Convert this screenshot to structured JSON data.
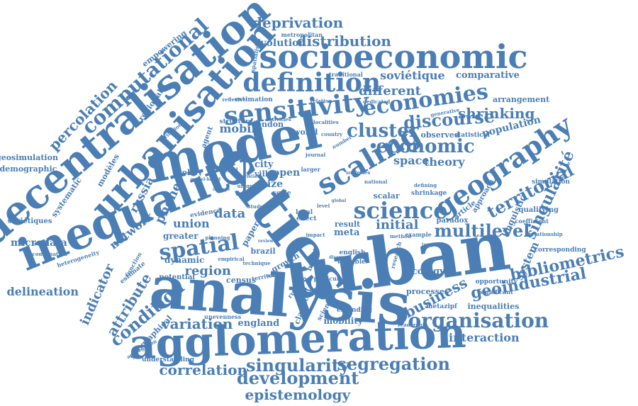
{
  "color": "#4a7eb4",
  "words": [
    "urban",
    "cities",
    "analysis",
    "model",
    "inequality",
    "agglomeration",
    "decentralisation",
    "urbanisation",
    "socioeconomic",
    "sensitivity",
    "definition",
    "geography",
    "scaling",
    "economies",
    "science",
    "economic",
    "spatial",
    "cluster",
    "organisation",
    "development",
    "singularity",
    "segregation",
    "multilevel",
    "computational",
    "territorial",
    "discourse",
    "shrinking",
    "distribution",
    "deprivation",
    "condition",
    "bibliometrics",
    "geoindustrial",
    "singularité",
    "business",
    "percolation",
    "correlation",
    "epistemology",
    "variation",
    "interaction",
    "attribute",
    "indicator",
    "region",
    "network",
    "phone",
    "russia",
    "union",
    "data",
    "mobile",
    "space",
    "theory",
    "initial",
    "different",
    "soviétique",
    "comparative",
    "evolution",
    "delineation",
    "microdata",
    "geosimulation",
    "demographic",
    "soviétiques",
    "systematic",
    "modèles",
    "empowering",
    "regional",
    "population",
    "arrangement",
    "system",
    "ecology",
    "processes",
    "inequalities",
    "mobility",
    "england",
    "greater",
    "dynamic",
    "potential",
    "census",
    "size",
    "city",
    "open",
    "ville",
    "policy",
    "london",
    "world",
    "structure",
    "estimation",
    "reflexive",
    "traditional",
    "spatialised",
    "metropolitan",
    "observed",
    "statistical",
    "generative",
    "linguistic",
    "qualifying",
    "coefficient",
    "simulation",
    "paradox",
    "article",
    "approach",
    "relationship",
    "corresponding",
    "opportunity",
    "significant",
    "metazipf",
    "readership",
    "extending",
    "english",
    "variable",
    "brazil",
    "scale",
    "paper",
    "result",
    "meta",
    "based",
    "growth",
    "classical",
    "scientific",
    "geographical",
    "aggregation",
    "understanding",
    "unevenness",
    "heterogeneity",
    "combination",
    "function",
    "estimate",
    "sensitive",
    "russian",
    "agent",
    "criterion",
    "several",
    "varieties",
    "unique",
    "defining",
    "shrinkage",
    "scalar",
    "local",
    "effect",
    "impact",
    "evidence",
    "planning",
    "empirical",
    "technique",
    "territory",
    "making",
    "particular",
    "example",
    "method",
    "research",
    "dedicated",
    "relation",
    "activities",
    "localities",
    "journal",
    "societies",
    "national",
    "larger",
    "country",
    "number",
    "level",
    "change",
    "study",
    "review",
    "diverse",
    "zipf",
    "model-based",
    "global",
    "temporal"
  ]
}
